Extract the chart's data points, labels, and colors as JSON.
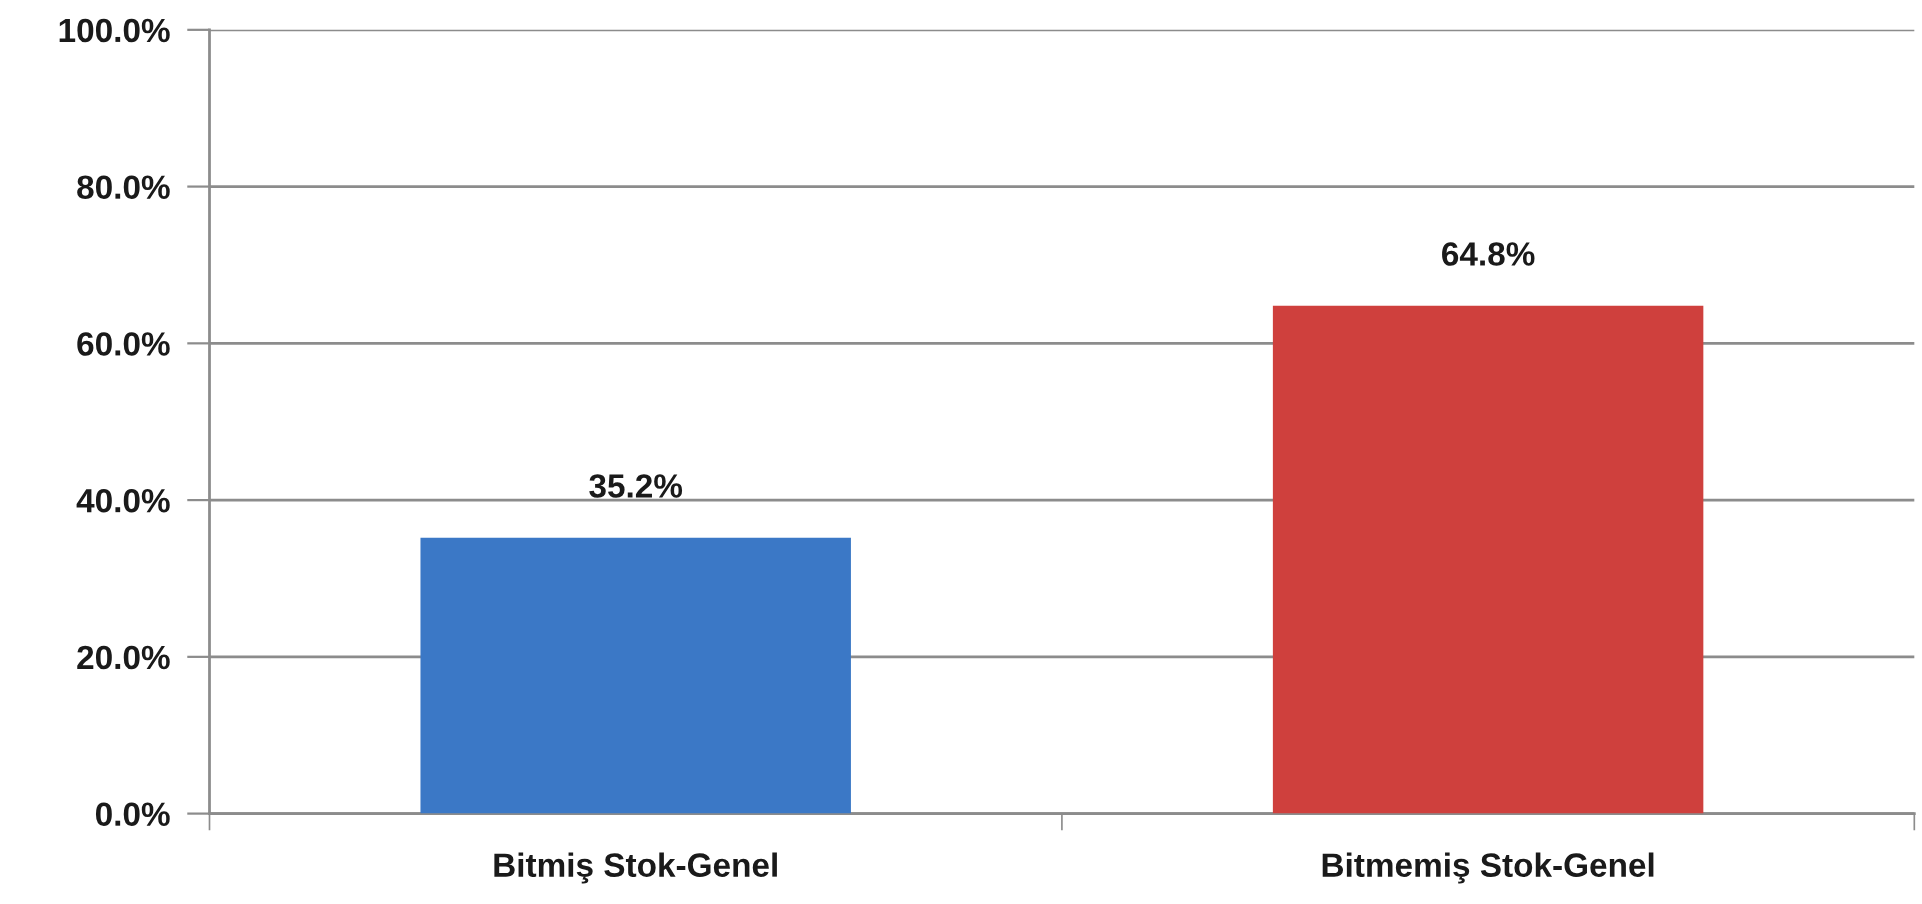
{
  "chart_data": {
    "type": "bar",
    "categories": [
      "Bitmiş Stok-Genel",
      "Bitmemiş Stok-Genel"
    ],
    "values": [
      35.2,
      64.8
    ],
    "colors": [
      "#3b78c6",
      "#cf403d"
    ],
    "value_labels": [
      "35.2%",
      "64.8%"
    ],
    "ylim": [
      0,
      100
    ],
    "yticks": [
      {
        "value": 0,
        "label": "0.0%"
      },
      {
        "value": 20,
        "label": "20.0%"
      },
      {
        "value": 40,
        "label": "40.0%"
      },
      {
        "value": 60,
        "label": "60.0%"
      },
      {
        "value": 80,
        "label": "80.0%"
      },
      {
        "value": 100,
        "label": "100.0%"
      }
    ],
    "grid": "y"
  }
}
